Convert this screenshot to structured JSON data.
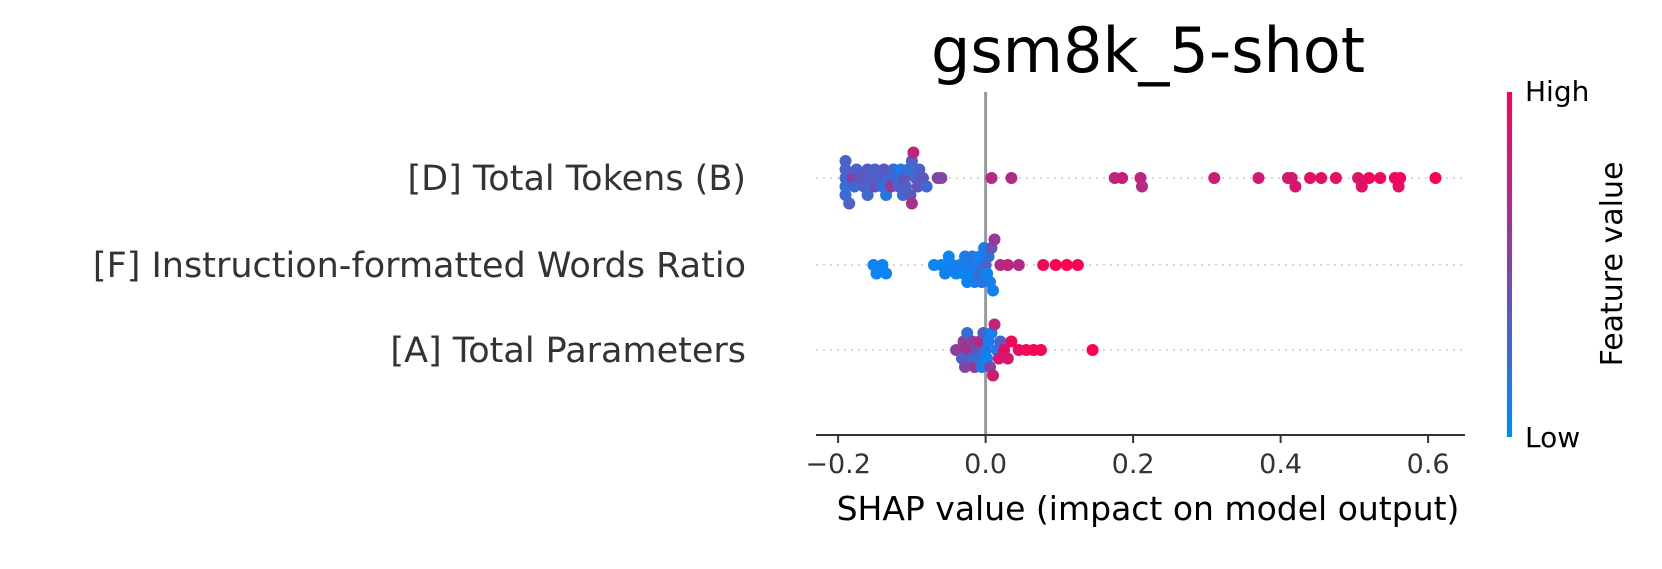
{
  "chart_data": {
    "type": "scatter",
    "title": "gsm8k_5-shot",
    "xlabel": "SHAP value (impact on model output)",
    "xlim": [
      -0.23,
      0.65
    ],
    "x_ticks": [
      -0.2,
      0.0,
      0.2,
      0.4,
      0.6
    ],
    "x_tick_labels": [
      "−0.2",
      "0.0",
      "0.2",
      "0.4",
      "0.6"
    ],
    "zero_line": 0.0,
    "colorbar": {
      "title": "Feature value",
      "high_label": "High",
      "low_label": "Low",
      "low_color": "#008bfb",
      "high_color": "#ff0051"
    },
    "colors": {
      "low": "#008bfb",
      "high": "#ff0051",
      "zero_line": "#999999",
      "axis": "#333333"
    },
    "features": [
      {
        "label": "[D] Total Tokens (B)",
        "points": [
          {
            "x": -0.19,
            "c": 0.25
          },
          {
            "x": -0.19,
            "c": 0.2
          },
          {
            "x": -0.19,
            "c": 0.3
          },
          {
            "x": -0.19,
            "c": 0.22
          },
          {
            "x": -0.19,
            "c": 0.28
          },
          {
            "x": -0.185,
            "c": 0.3
          },
          {
            "x": -0.18,
            "c": 0.55
          },
          {
            "x": -0.178,
            "c": 0.25
          },
          {
            "x": -0.175,
            "c": 0.3
          },
          {
            "x": -0.17,
            "c": 0.35
          },
          {
            "x": -0.165,
            "c": 0.3
          },
          {
            "x": -0.16,
            "c": 0.35
          },
          {
            "x": -0.16,
            "c": 0.25
          },
          {
            "x": -0.155,
            "c": 0.3
          },
          {
            "x": -0.15,
            "c": 0.4
          },
          {
            "x": -0.15,
            "c": 0.28
          },
          {
            "x": -0.145,
            "c": 0.3
          },
          {
            "x": -0.14,
            "c": 0.2
          },
          {
            "x": -0.138,
            "c": 0.35
          },
          {
            "x": -0.135,
            "c": 0.15
          },
          {
            "x": -0.13,
            "c": 0.3
          },
          {
            "x": -0.128,
            "c": 0.6
          },
          {
            "x": -0.125,
            "c": 0.25
          },
          {
            "x": -0.12,
            "c": 0.2
          },
          {
            "x": -0.118,
            "c": 0.3
          },
          {
            "x": -0.115,
            "c": 0.1
          },
          {
            "x": -0.112,
            "c": 0.25
          },
          {
            "x": -0.11,
            "c": 0.4
          },
          {
            "x": -0.108,
            "c": 0.3
          },
          {
            "x": -0.105,
            "c": 0.2
          },
          {
            "x": -0.102,
            "c": 0.35
          },
          {
            "x": -0.1,
            "c": 0.3
          },
          {
            "x": -0.1,
            "c": 0.65
          },
          {
            "x": -0.098,
            "c": 0.75
          },
          {
            "x": -0.095,
            "c": 0.3
          },
          {
            "x": -0.092,
            "c": 0.4
          },
          {
            "x": -0.09,
            "c": 0.28
          },
          {
            "x": -0.085,
            "c": 0.35
          },
          {
            "x": -0.08,
            "c": 0.25
          },
          {
            "x": -0.065,
            "c": 0.55
          },
          {
            "x": -0.06,
            "c": 0.5
          },
          {
            "x": 0.008,
            "c": 0.7
          },
          {
            "x": 0.035,
            "c": 0.7
          },
          {
            "x": 0.175,
            "c": 0.75
          },
          {
            "x": 0.185,
            "c": 0.78
          },
          {
            "x": 0.21,
            "c": 0.75
          },
          {
            "x": 0.212,
            "c": 0.72
          },
          {
            "x": 0.31,
            "c": 0.8
          },
          {
            "x": 0.37,
            "c": 0.8
          },
          {
            "x": 0.41,
            "c": 0.8
          },
          {
            "x": 0.415,
            "c": 0.82
          },
          {
            "x": 0.42,
            "c": 0.85
          },
          {
            "x": 0.44,
            "c": 0.9
          },
          {
            "x": 0.455,
            "c": 0.88
          },
          {
            "x": 0.475,
            "c": 0.9
          },
          {
            "x": 0.505,
            "c": 0.85
          },
          {
            "x": 0.51,
            "c": 0.9
          },
          {
            "x": 0.52,
            "c": 0.95
          },
          {
            "x": 0.535,
            "c": 0.95
          },
          {
            "x": 0.555,
            "c": 0.92
          },
          {
            "x": 0.56,
            "c": 0.9
          },
          {
            "x": 0.562,
            "c": 0.95
          },
          {
            "x": 0.61,
            "c": 1.0
          }
        ]
      },
      {
        "label": "[F] Instruction-formatted Words Ratio",
        "points": [
          {
            "x": -0.152,
            "c": 0.05
          },
          {
            "x": -0.148,
            "c": 0.05
          },
          {
            "x": -0.14,
            "c": 0.05
          },
          {
            "x": -0.135,
            "c": 0.05
          },
          {
            "x": -0.07,
            "c": 0.05
          },
          {
            "x": -0.06,
            "c": 0.05
          },
          {
            "x": -0.055,
            "c": 0.08
          },
          {
            "x": -0.05,
            "c": 0.05
          },
          {
            "x": -0.045,
            "c": 0.08
          },
          {
            "x": -0.04,
            "c": 0.05
          },
          {
            "x": -0.035,
            "c": 0.1
          },
          {
            "x": -0.03,
            "c": 0.05
          },
          {
            "x": -0.028,
            "c": 0.1
          },
          {
            "x": -0.025,
            "c": 0.05
          },
          {
            "x": -0.022,
            "c": 0.12
          },
          {
            "x": -0.02,
            "c": 0.05
          },
          {
            "x": -0.018,
            "c": 0.15
          },
          {
            "x": -0.015,
            "c": 0.08
          },
          {
            "x": -0.012,
            "c": 0.1
          },
          {
            "x": -0.01,
            "c": 0.2
          },
          {
            "x": -0.008,
            "c": 0.05
          },
          {
            "x": -0.005,
            "c": 0.15
          },
          {
            "x": -0.002,
            "c": 0.1
          },
          {
            "x": 0.0,
            "c": 0.3
          },
          {
            "x": 0.002,
            "c": 0.05
          },
          {
            "x": 0.004,
            "c": 0.2
          },
          {
            "x": 0.006,
            "c": 0.1
          },
          {
            "x": 0.008,
            "c": 0.4
          },
          {
            "x": 0.01,
            "c": 0.05
          },
          {
            "x": 0.012,
            "c": 0.6
          },
          {
            "x": 0.02,
            "c": 0.7
          },
          {
            "x": 0.03,
            "c": 0.75
          },
          {
            "x": 0.045,
            "c": 0.7
          },
          {
            "x": 0.078,
            "c": 0.95
          },
          {
            "x": 0.095,
            "c": 1.0
          },
          {
            "x": 0.11,
            "c": 1.0
          },
          {
            "x": 0.125,
            "c": 1.0
          }
        ]
      },
      {
        "label": "[A] Total Parameters",
        "points": [
          {
            "x": -0.04,
            "c": 0.55
          },
          {
            "x": -0.035,
            "c": 0.6
          },
          {
            "x": -0.032,
            "c": 0.3
          },
          {
            "x": -0.03,
            "c": 0.6
          },
          {
            "x": -0.028,
            "c": 0.5
          },
          {
            "x": -0.025,
            "c": 0.2
          },
          {
            "x": -0.022,
            "c": 0.65
          },
          {
            "x": -0.02,
            "c": 0.3
          },
          {
            "x": -0.018,
            "c": 0.55
          },
          {
            "x": -0.015,
            "c": 0.6
          },
          {
            "x": -0.012,
            "c": 0.4
          },
          {
            "x": -0.01,
            "c": 0.2
          },
          {
            "x": -0.008,
            "c": 0.7
          },
          {
            "x": -0.005,
            "c": 0.1
          },
          {
            "x": -0.003,
            "c": 0.3
          },
          {
            "x": 0.0,
            "c": 0.15
          },
          {
            "x": 0.002,
            "c": 0.05
          },
          {
            "x": 0.004,
            "c": 0.1
          },
          {
            "x": 0.006,
            "c": 0.5
          },
          {
            "x": 0.008,
            "c": 0.05
          },
          {
            "x": 0.01,
            "c": 0.8
          },
          {
            "x": 0.012,
            "c": 0.75
          },
          {
            "x": 0.015,
            "c": 0.1
          },
          {
            "x": 0.018,
            "c": 0.85
          },
          {
            "x": 0.02,
            "c": 0.3
          },
          {
            "x": 0.025,
            "c": 0.9
          },
          {
            "x": 0.03,
            "c": 0.85
          },
          {
            "x": 0.035,
            "c": 0.95
          },
          {
            "x": 0.045,
            "c": 0.9
          },
          {
            "x": 0.055,
            "c": 0.95
          },
          {
            "x": 0.065,
            "c": 0.95
          },
          {
            "x": 0.075,
            "c": 0.95
          },
          {
            "x": 0.145,
            "c": 1.0
          }
        ]
      }
    ]
  }
}
